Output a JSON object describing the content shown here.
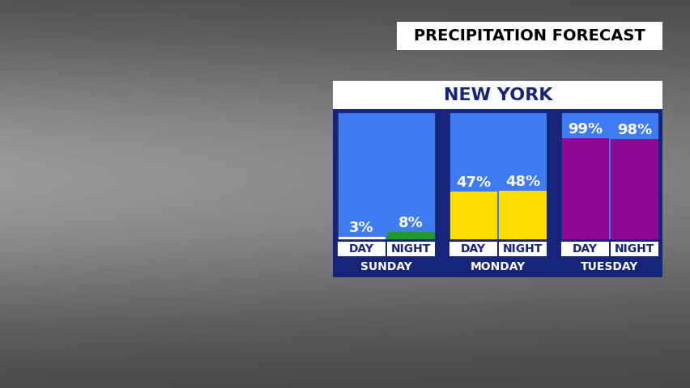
{
  "chart_data": {
    "type": "bar",
    "subtitle": "PRECIPITATION FORECAST",
    "title": "NEW YORK",
    "groups": [
      "SUNDAY",
      "MONDAY",
      "TUESDAY"
    ],
    "categories": [
      "DAY",
      "NIGHT",
      "DAY",
      "NIGHT",
      "DAY",
      "NIGHT"
    ],
    "values": [
      3,
      8,
      47,
      48,
      99,
      98
    ],
    "value_labels": [
      "3%",
      "8%",
      "47%",
      "48%",
      "99%",
      "98%"
    ],
    "colors": [
      "#ffffff",
      "#1f9a2e",
      "#ffdd00",
      "#ffdd00",
      "#8e0a96",
      "#8e0a96"
    ],
    "ylim": [
      0,
      125
    ],
    "tick_labels": false,
    "data_labels": true
  }
}
